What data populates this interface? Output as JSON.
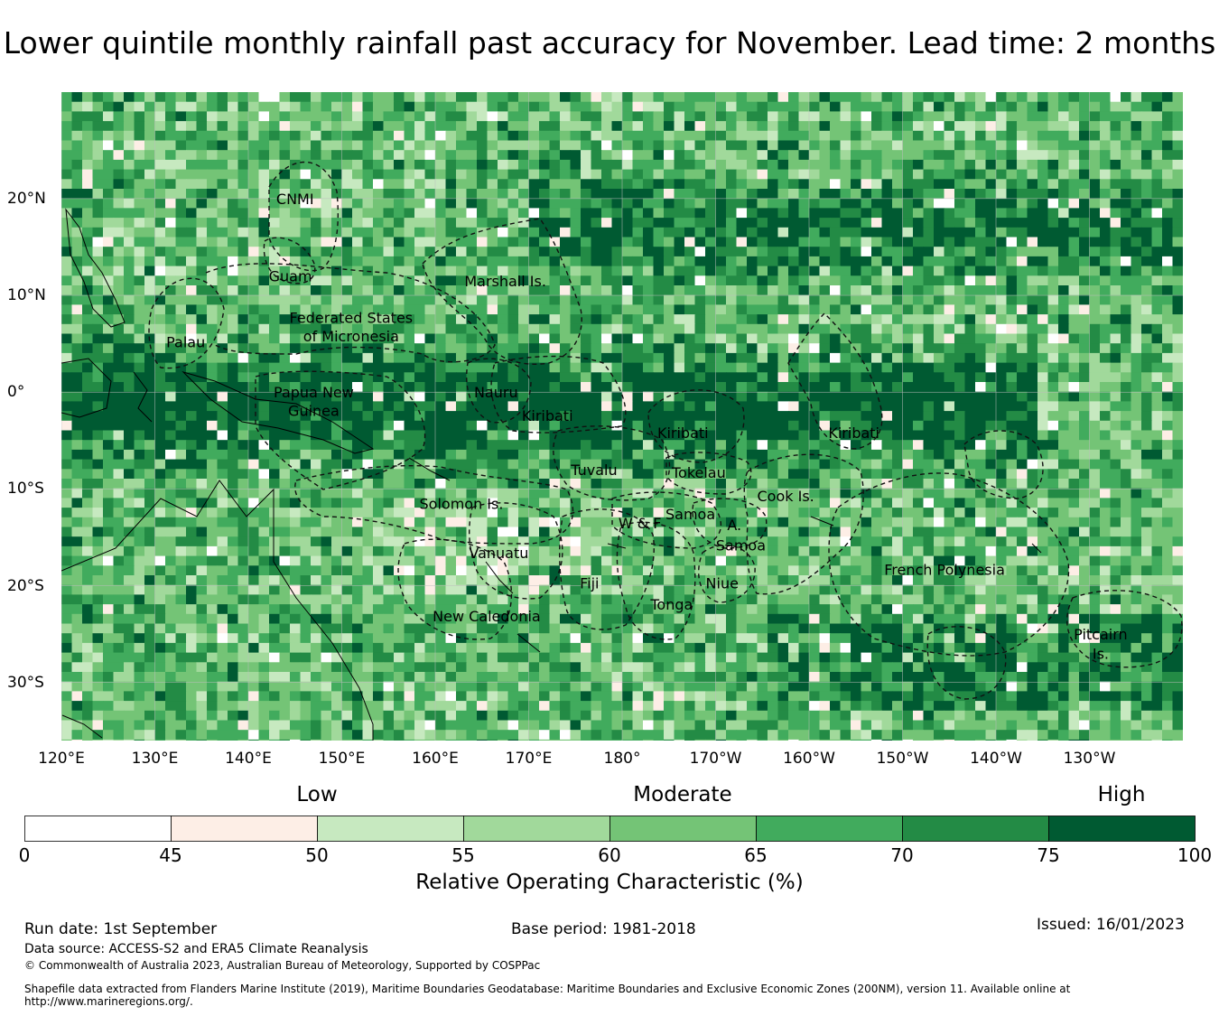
{
  "title": "Lower quintile monthly rainfall past accuracy for November. Lead time: 2 months",
  "colors": {
    "bins": [
      "#ffffff",
      "#fdeee6",
      "#c7e9c0",
      "#a1d99b",
      "#74c476",
      "#41ab5d",
      "#238b45",
      "#005a32"
    ],
    "coast": "#000000",
    "boundary": "#111111",
    "grid": "#bdbdbd"
  },
  "map": {
    "lon_range": [
      120,
      240
    ],
    "lat_range": [
      -36,
      31
    ],
    "lon_ticks": [
      {
        "lon": 120,
        "label": "120°E"
      },
      {
        "lon": 130,
        "label": "130°E"
      },
      {
        "lon": 140,
        "label": "140°E"
      },
      {
        "lon": 150,
        "label": "150°E"
      },
      {
        "lon": 160,
        "label": "160°E"
      },
      {
        "lon": 170,
        "label": "170°E"
      },
      {
        "lon": 180,
        "label": "180°"
      },
      {
        "lon": 190,
        "label": "170°W"
      },
      {
        "lon": 200,
        "label": "160°W"
      },
      {
        "lon": 210,
        "label": "150°W"
      },
      {
        "lon": 220,
        "label": "140°W"
      },
      {
        "lon": 230,
        "label": "130°W"
      }
    ],
    "lat_ticks": [
      {
        "lat": 20,
        "label": "20°N"
      },
      {
        "lat": 10,
        "label": "10°N"
      },
      {
        "lat": 0,
        "label": "0°"
      },
      {
        "lat": -10,
        "label": "10°S"
      },
      {
        "lat": -20,
        "label": "20°S"
      },
      {
        "lat": -30,
        "label": "30°S"
      }
    ],
    "regions": [
      {
        "name": "CNMI",
        "lon": 145.0,
        "lat": 20.0
      },
      {
        "name": "Guam",
        "lon": 144.5,
        "lat": 12.0
      },
      {
        "name": "Marshall Is.",
        "lon": 167.5,
        "lat": 11.5
      },
      {
        "name": "Federated States",
        "lon": 151.0,
        "lat": 7.7
      },
      {
        "name": "of Micronesia",
        "lon": 151.0,
        "lat": 5.8
      },
      {
        "name": "Palau",
        "lon": 133.3,
        "lat": 5.2
      },
      {
        "name": "Papua New",
        "lon": 147.0,
        "lat": 0.0
      },
      {
        "name": "Guinea",
        "lon": 147.0,
        "lat": -1.9
      },
      {
        "name": "Nauru",
        "lon": 166.5,
        "lat": 0.0
      },
      {
        "name": "Kiribati",
        "lon": 172.0,
        "lat": -2.4
      },
      {
        "name": "Kiribati",
        "lon": 186.5,
        "lat": -4.2
      },
      {
        "name": "Kiribati",
        "lon": 204.8,
        "lat": -4.2
      },
      {
        "name": "Tuvalu",
        "lon": 177.0,
        "lat": -8.0
      },
      {
        "name": "Tokelau",
        "lon": 188.2,
        "lat": -8.3
      },
      {
        "name": "Cook Is.",
        "lon": 197.5,
        "lat": -10.7
      },
      {
        "name": "Solomon Is.",
        "lon": 162.8,
        "lat": -11.5
      },
      {
        "name": "W & F",
        "lon": 181.9,
        "lat": -13.5
      },
      {
        "name": "Samoa",
        "lon": 187.3,
        "lat": -12.6
      },
      {
        "name": "A.",
        "lon": 192.0,
        "lat": -13.7
      },
      {
        "name": "Samoa",
        "lon": 192.7,
        "lat": -15.8
      },
      {
        "name": "Vanuatu",
        "lon": 166.8,
        "lat": -16.6
      },
      {
        "name": "French Polynesia",
        "lon": 214.5,
        "lat": -18.3
      },
      {
        "name": "Fiji",
        "lon": 176.5,
        "lat": -19.7
      },
      {
        "name": "Niue",
        "lon": 190.7,
        "lat": -19.7
      },
      {
        "name": "Tonga",
        "lon": 185.3,
        "lat": -21.9
      },
      {
        "name": "New Caledonia",
        "lon": 165.5,
        "lat": -23.1
      },
      {
        "name": "Pitcairn",
        "lon": 231.2,
        "lat": -25.0
      },
      {
        "name": "Is.",
        "lon": 231.2,
        "lat": -27.0
      }
    ]
  },
  "legend": {
    "categories": [
      {
        "label": "Low",
        "at": 50
      },
      {
        "label": "Moderate",
        "at": 62.5
      },
      {
        "label": "High",
        "at": 87.5
      }
    ],
    "tick_labels": [
      "0",
      "45",
      "50",
      "55",
      "60",
      "65",
      "70",
      "75",
      "100"
    ],
    "title": "Relative Operating Characteristic (%)"
  },
  "footer": {
    "run_date": "Run date: 1st September",
    "base_period": "Base period: 1981-2018",
    "issued": "Issued: 16/01/2023",
    "data_source": "Data source: ACCESS-S2 and ERA5 Climate Reanalysis",
    "copyright": "© Commonwealth of Australia 2023, Australian Bureau of Meteorology, Supported by COSPPac",
    "shapefile_line1": "Shapefile data extracted from Flanders Marine Institute (2019), Maritime Boundaries Geodatabase: Maritime Boundaries and Exclusive Economic Zones (200NM), version 11. Available online at",
    "shapefile_line2": "http://www.marineregions.org/."
  }
}
